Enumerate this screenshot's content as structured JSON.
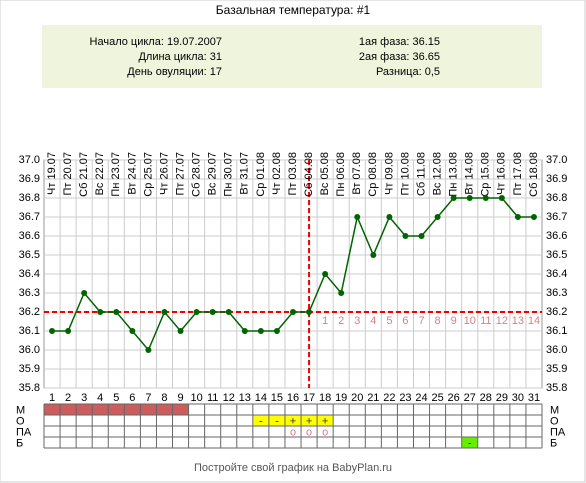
{
  "chart_data": {
    "type": "line",
    "title": "Базальная температура: #1",
    "info_left": [
      "Начало цикла: 19.07.2007",
      "Длина цикла: 31",
      "День овуляции: 17"
    ],
    "info_right": [
      "1ая фаза: 36.15",
      "2ая фаза: 36.65",
      "Разница: 0,5"
    ],
    "categories": [
      "Чт 19.07",
      "Пт 20.07",
      "Сб 21.07",
      "Вс 22.07",
      "Пн 23.07",
      "Вт 24.07",
      "Ср 25.07",
      "Чт 26.07",
      "Пт 27.07",
      "Сб 28.07",
      "Вс 29.07",
      "Пн 30.07",
      "Вт 31.07",
      "Ср 01.08",
      "Чт 02.08",
      "Пт 03.08",
      "Сб 04.08",
      "Вс 05.08",
      "Пн 06.08",
      "Вт 07.08",
      "Ср 08.08",
      "Чт 09.08",
      "Пт 10.08",
      "Сб 11.08",
      "Вс 12.08",
      "Пн 13.08",
      "Вт 14.08",
      "Ср 15.08",
      "Чт 16.08",
      "Пт 17.08",
      "Сб 18.08"
    ],
    "x": [
      1,
      2,
      3,
      4,
      5,
      6,
      7,
      8,
      9,
      10,
      11,
      12,
      13,
      14,
      15,
      16,
      17,
      18,
      19,
      20,
      21,
      22,
      23,
      24,
      25,
      26,
      27,
      28,
      29,
      30,
      31
    ],
    "values": [
      36.1,
      36.1,
      36.3,
      36.2,
      36.2,
      36.1,
      36.0,
      36.2,
      36.1,
      36.2,
      36.2,
      36.2,
      36.1,
      36.1,
      36.1,
      36.2,
      36.2,
      36.4,
      36.3,
      36.7,
      36.5,
      36.7,
      36.6,
      36.6,
      36.7,
      36.8,
      36.8,
      36.8,
      36.8,
      36.7,
      36.7
    ],
    "color": "#006400",
    "xlim": [
      0.5,
      31.5
    ],
    "ylim": [
      35.8,
      37.0
    ],
    "yticks": [
      {
        "value": 37.0,
        "label": "37.0"
      },
      36.9,
      36.8,
      36.7,
      36.6,
      36.5,
      36.4,
      36.3,
      36.2,
      36.1,
      {
        "value": 36.0,
        "label": "36.0"
      },
      35.9,
      35.8
    ],
    "grid": true,
    "coverline": 36.2,
    "ovulation_day": 17,
    "phase2_day_numbers": [
      1,
      2,
      3,
      4,
      5,
      6,
      7,
      8,
      9,
      10,
      11,
      12,
      13,
      14
    ],
    "tracks": [
      {
        "label": "М",
        "days": [
          1,
          2,
          3,
          4,
          5,
          6,
          7,
          8,
          9
        ],
        "color": "#cd5c5c"
      },
      {
        "label": "О",
        "days": [
          14,
          15,
          16,
          17,
          18
        ],
        "marks": [
          "-",
          "-",
          "+",
          "+",
          "+"
        ],
        "color": "#ffff00"
      },
      {
        "label": "ПА",
        "days": [
          16,
          17,
          18
        ],
        "marks": [
          "o",
          "o",
          "o"
        ]
      },
      {
        "label": "Б",
        "days": [
          27
        ],
        "marks": [
          "-"
        ],
        "color": "#66ee00"
      }
    ],
    "footer": "Постройте свой график на BabyPlan.ru"
  }
}
